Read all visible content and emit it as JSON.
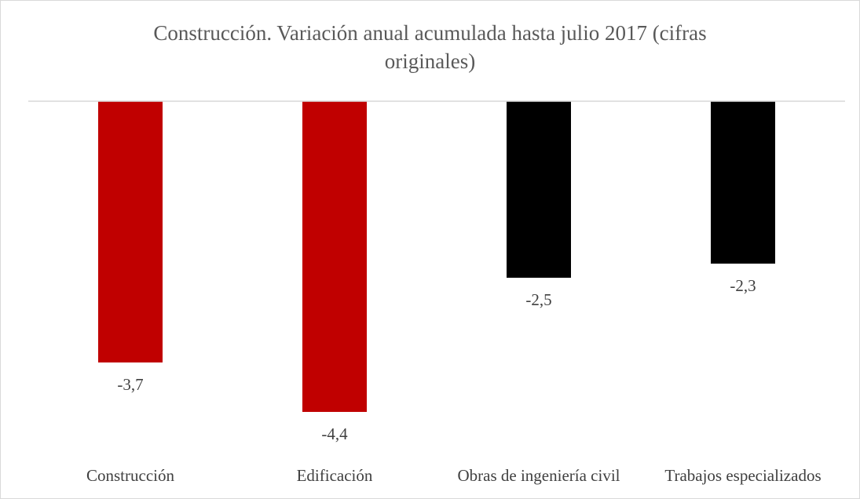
{
  "chart_data": {
    "type": "bar",
    "title": "Construcción. Variación anual acumulada hasta julio 2017 (cifras originales)",
    "categories": [
      "Construcción",
      "Edificación",
      "Obras de ingeniería civil",
      "Trabajos especializados"
    ],
    "values": [
      -3.7,
      -4.4,
      -2.5,
      -2.3
    ],
    "value_labels": [
      "-3,7",
      "-4,4",
      "-2,5",
      "-2,3"
    ],
    "colors": [
      "#c00000",
      "#c00000",
      "#000000",
      "#000000"
    ],
    "ylim": [
      -5,
      0
    ]
  }
}
